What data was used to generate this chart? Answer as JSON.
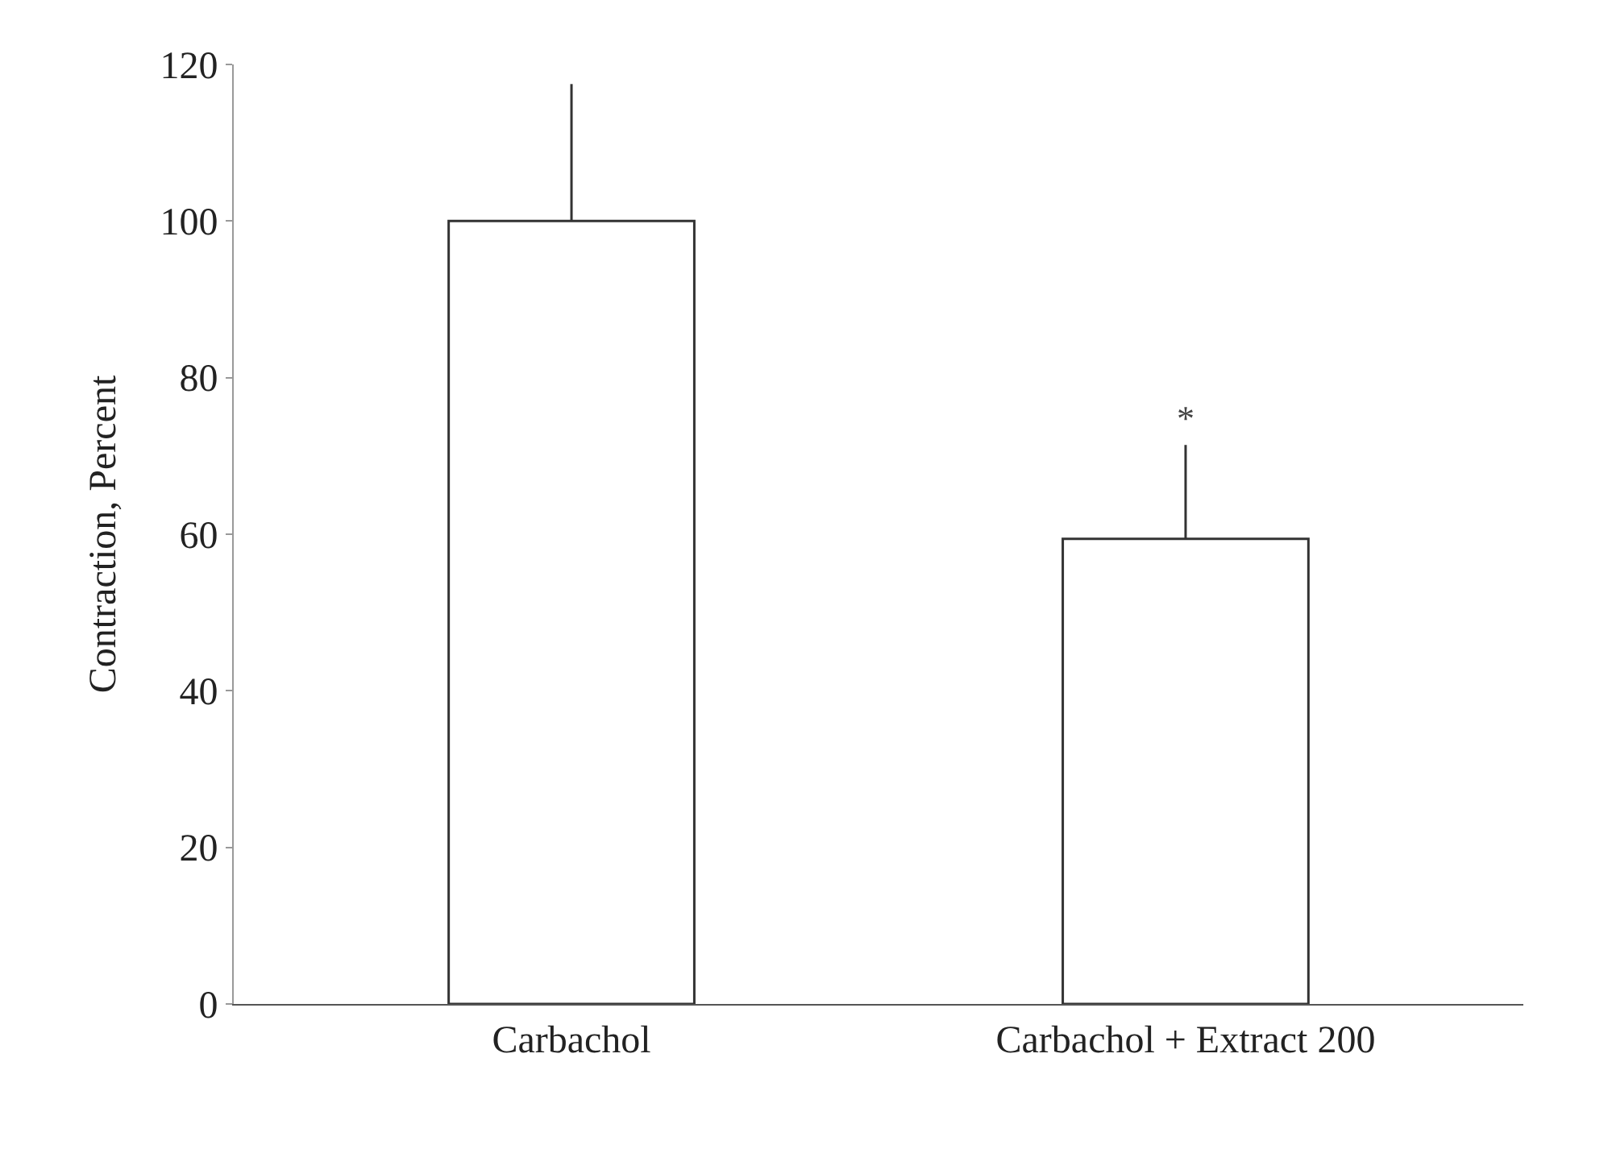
{
  "chart_data": {
    "type": "bar",
    "ylabel": "Contraction, Percent",
    "categories": [
      "Carbachol",
      "Carbachol + Extract 200"
    ],
    "values": [
      100,
      59.4
    ],
    "errors": [
      [
        100,
        117.5
      ],
      [
        59.4,
        71.4
      ]
    ],
    "color": "#ffffff",
    "ylim": [
      0,
      120
    ],
    "yticks": [
      0,
      20,
      40,
      60,
      80,
      100,
      120
    ],
    "grid": false,
    "annotations": [
      {
        "text": "*",
        "x": "Carbachol + Extract 200",
        "y": 71.4
      }
    ]
  }
}
